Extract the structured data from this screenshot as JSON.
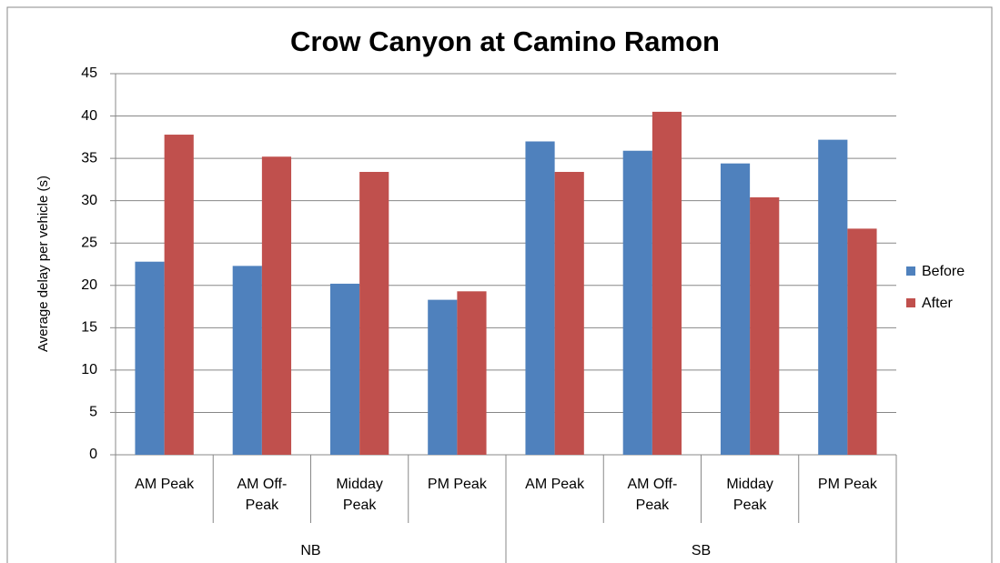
{
  "chart_data": {
    "type": "bar",
    "title": "Crow Canyon at Camino Ramon",
    "y_label": "Average delay per vehicle (s)",
    "categories": [
      "AM Peak",
      "AM Off-Peak",
      "Midday Peak",
      "PM Peak",
      "AM Peak",
      "AM Off-Peak",
      "Midday Peak",
      "PM Peak"
    ],
    "groups": [
      "NB",
      "SB"
    ],
    "series": [
      {
        "name": "Before",
        "color": "#4f81bd",
        "values": [
          22.8,
          22.3,
          20.2,
          18.3,
          37.0,
          35.9,
          34.4,
          37.2
        ]
      },
      {
        "name": "After",
        "color": "#c0504d",
        "values": [
          37.8,
          35.2,
          33.4,
          19.3,
          33.4,
          40.5,
          30.4,
          26.7
        ]
      }
    ],
    "ylim": [
      0,
      45
    ],
    "yticks": [
      0,
      5,
      10,
      15,
      20,
      25,
      30,
      35,
      40,
      45
    ],
    "grid": true,
    "legend": "right"
  }
}
